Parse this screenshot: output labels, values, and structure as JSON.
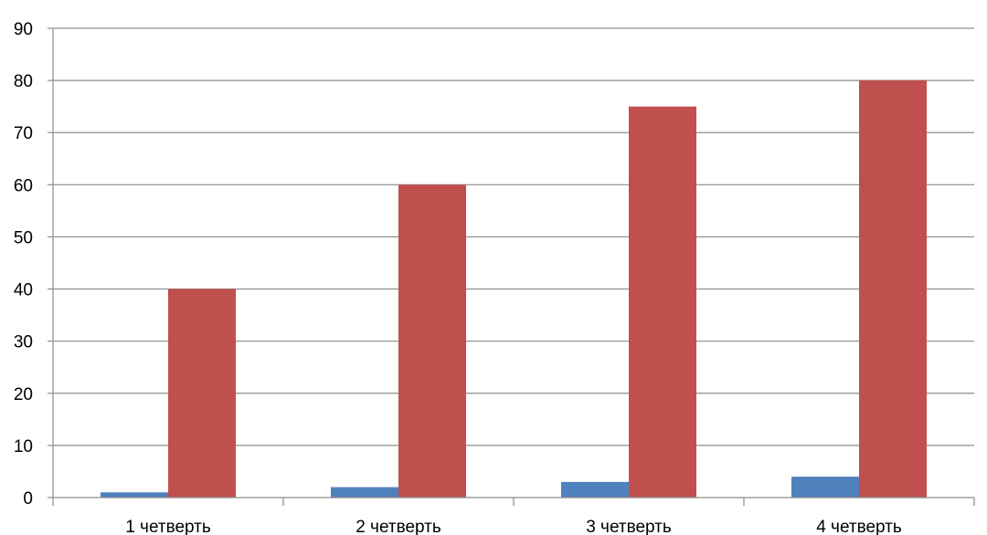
{
  "chart_data": {
    "type": "bar",
    "categories": [
      "1 четверть",
      "2 четверть",
      "3 четверть",
      "4 четверть"
    ],
    "series": [
      {
        "values": [
          1,
          2,
          3,
          4
        ],
        "color": "#4F81BD"
      },
      {
        "values": [
          40,
          60,
          75,
          80
        ],
        "color": "#C0504D"
      }
    ],
    "ylim": [
      0,
      90
    ],
    "yticks": [
      "0",
      "10",
      "20",
      "30",
      "40",
      "50",
      "60",
      "70",
      "80",
      "90"
    ],
    "grid": true,
    "legend": "none"
  }
}
